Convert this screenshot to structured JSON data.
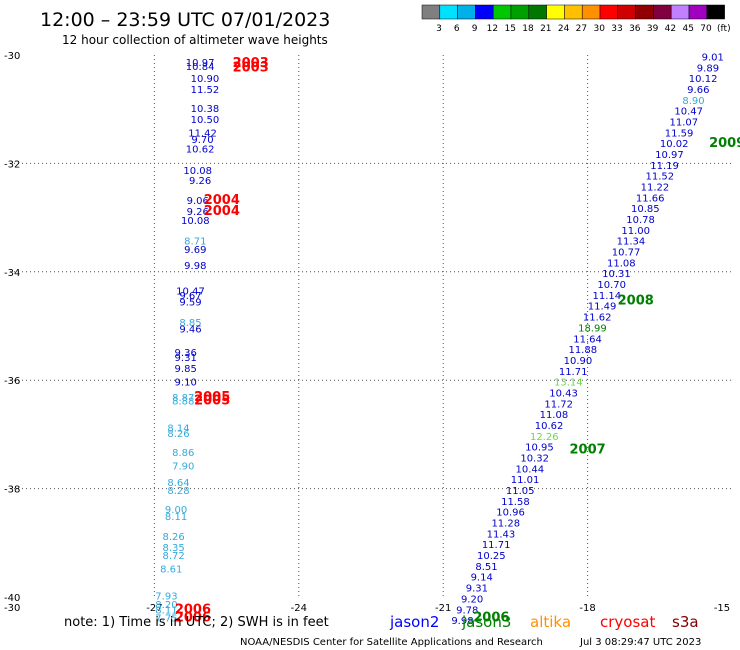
{
  "header": {
    "title": "12:00 – 23:59 UTC 07/01/2023",
    "subtitle": "12 hour collection of altimeter wave heights"
  },
  "colorbar": {
    "labels": [
      "3",
      "6",
      "9",
      "12",
      "15",
      "18",
      "21",
      "24",
      "27",
      "30",
      "33",
      "36",
      "39",
      "42",
      "45",
      "70",
      "(ft)"
    ],
    "colors": [
      "#7f7f7f",
      "#00e0ff",
      "#00b0e8",
      "#0000ff",
      "#00c800",
      "#00a000",
      "#007800",
      "#ffff00",
      "#ffc000",
      "#ff9000",
      "#ff0000",
      "#d00000",
      "#900000",
      "#800040",
      "#c080ff",
      "#a000c0",
      "#000000"
    ]
  },
  "footer": {
    "note": "note:  1) Time is in UTC;  2) SWH is in feet",
    "satellites": [
      {
        "name": "jason2",
        "color": "#0000ff"
      },
      {
        "name": "jason3",
        "color": "#008000"
      },
      {
        "name": "altika",
        "color": "#ff9000"
      },
      {
        "name": "cryosat",
        "color": "#ff0000"
      },
      {
        "name": "s3a",
        "color": "#800000"
      }
    ],
    "credit": "NOAA/NESDIS Center for Satellite Applications and Research",
    "timestamp": "Jul  3 08:29:47 UTC 2023"
  },
  "chart_data": {
    "type": "scatter",
    "x_ticks": [
      "-27",
      "-24",
      "-21",
      "-18",
      "-15"
    ],
    "y_ticks": [
      "-30",
      "-32",
      "-34",
      "-36",
      "-38",
      "-40"
    ],
    "xlim": [
      -30,
      -15
    ],
    "ylim": [
      -40,
      -30
    ],
    "grid": true,
    "points": [
      {
        "x": -26.05,
        "y": -30.2,
        "v": "10.97",
        "c": "#0000cc"
      },
      {
        "x": -26.05,
        "y": -30.28,
        "v": "10.84",
        "c": "#0000cc"
      },
      {
        "x": -25.95,
        "y": -30.5,
        "v": "10.90",
        "c": "#0000cc"
      },
      {
        "x": -25.95,
        "y": -30.7,
        "v": "11.52",
        "c": "#0000cc"
      },
      {
        "x": -25.95,
        "y": -31.05,
        "v": "10.38",
        "c": "#0000cc"
      },
      {
        "x": -25.95,
        "y": -31.25,
        "v": "10.50",
        "c": "#0000cc"
      },
      {
        "x": -26.0,
        "y": -31.5,
        "v": "11.42",
        "c": "#0000cc"
      },
      {
        "x": -26.0,
        "y": -31.62,
        "v": "9.70",
        "c": "#0000cc"
      },
      {
        "x": -26.05,
        "y": -31.8,
        "v": "10.62",
        "c": "#0000cc"
      },
      {
        "x": -26.1,
        "y": -32.2,
        "v": "10.08",
        "c": "#0000cc"
      },
      {
        "x": -26.05,
        "y": -32.38,
        "v": "9.26",
        "c": "#0000cc"
      },
      {
        "x": -26.1,
        "y": -32.75,
        "v": "9.06",
        "c": "#0000cc"
      },
      {
        "x": -26.1,
        "y": -32.95,
        "v": "9.26",
        "c": "#0000cc"
      },
      {
        "x": -26.15,
        "y": -33.12,
        "v": "10.08",
        "c": "#0000cc"
      },
      {
        "x": -26.15,
        "y": -33.5,
        "v": "8.71",
        "c": "#33aadd"
      },
      {
        "x": -26.15,
        "y": -33.65,
        "v": "9.69",
        "c": "#0000cc"
      },
      {
        "x": -26.15,
        "y": -33.95,
        "v": "9.98",
        "c": "#0000cc"
      },
      {
        "x": -26.25,
        "y": -34.42,
        "v": "10.47",
        "c": "#0000cc"
      },
      {
        "x": -26.25,
        "y": -34.5,
        "v": "9.67",
        "c": "#0000cc"
      },
      {
        "x": -26.25,
        "y": -34.62,
        "v": "9.59",
        "c": "#0000cc"
      },
      {
        "x": -26.25,
        "y": -35.0,
        "v": "8.85",
        "c": "#33aadd"
      },
      {
        "x": -26.25,
        "y": -35.12,
        "v": "9.46",
        "c": "#0000cc"
      },
      {
        "x": -26.35,
        "y": -35.55,
        "v": "9.36",
        "c": "#0000cc"
      },
      {
        "x": -26.35,
        "y": -35.65,
        "v": "9.31",
        "c": "#0000cc"
      },
      {
        "x": -26.35,
        "y": -35.85,
        "v": "9.85",
        "c": "#0000cc"
      },
      {
        "x": -26.35,
        "y": -36.1,
        "v": "9.10",
        "c": "#0000cc"
      },
      {
        "x": -26.4,
        "y": -36.38,
        "v": "8.87",
        "c": "#33aadd"
      },
      {
        "x": -26.4,
        "y": -36.45,
        "v": "8.88",
        "c": "#33aadd"
      },
      {
        "x": -26.5,
        "y": -36.95,
        "v": "8.14",
        "c": "#33aadd"
      },
      {
        "x": -26.5,
        "y": -37.05,
        "v": "8.26",
        "c": "#33aadd"
      },
      {
        "x": -26.4,
        "y": -37.4,
        "v": "8.86",
        "c": "#33aadd"
      },
      {
        "x": -26.4,
        "y": -37.65,
        "v": "7.90",
        "c": "#33aadd"
      },
      {
        "x": -26.5,
        "y": -37.95,
        "v": "8.64",
        "c": "#33aadd"
      },
      {
        "x": -26.5,
        "y": -38.1,
        "v": "8.28",
        "c": "#33aadd"
      },
      {
        "x": -26.55,
        "y": -38.45,
        "v": "9.00",
        "c": "#33aadd"
      },
      {
        "x": -26.55,
        "y": -38.58,
        "v": "8.11",
        "c": "#33aadd"
      },
      {
        "x": -26.6,
        "y": -38.95,
        "v": "8.26",
        "c": "#33aadd"
      },
      {
        "x": -26.6,
        "y": -39.15,
        "v": "8.35",
        "c": "#33aadd"
      },
      {
        "x": -26.6,
        "y": -39.3,
        "v": "8.72",
        "c": "#33aadd"
      },
      {
        "x": -26.65,
        "y": -39.55,
        "v": "8.61",
        "c": "#33aadd"
      },
      {
        "x": -26.75,
        "y": -40.05,
        "v": "7.93",
        "c": "#33aadd"
      },
      {
        "x": -26.75,
        "y": -40.2,
        "v": "8.20",
        "c": "#33aadd"
      },
      {
        "x": -26.75,
        "y": -40.3,
        "v": "8.11",
        "c": "#33aadd"
      },
      {
        "x": -26.75,
        "y": -40.45,
        "v": "7.75",
        "c": "#33aadd"
      },
      {
        "x": -15.4,
        "y": -30.1,
        "v": "9.01",
        "c": "#0000cc"
      },
      {
        "x": -15.5,
        "y": -30.3,
        "v": "9.89",
        "c": "#0000cc"
      },
      {
        "x": -15.6,
        "y": -30.5,
        "v": "10.12",
        "c": "#0000cc"
      },
      {
        "x": -15.7,
        "y": -30.7,
        "v": "9.66",
        "c": "#0000cc"
      },
      {
        "x": -15.8,
        "y": -30.9,
        "v": "8.90",
        "c": "#33aadd"
      },
      {
        "x": -15.9,
        "y": -31.1,
        "v": "10.47",
        "c": "#0000cc"
      },
      {
        "x": -16.0,
        "y": -31.3,
        "v": "11.07",
        "c": "#0000cc"
      },
      {
        "x": -16.1,
        "y": -31.5,
        "v": "11.59",
        "c": "#0000cc"
      },
      {
        "x": -16.2,
        "y": -31.7,
        "v": "10.02",
        "c": "#0000cc"
      },
      {
        "x": -16.3,
        "y": -31.9,
        "v": "10.97",
        "c": "#0000cc"
      },
      {
        "x": -16.4,
        "y": -32.1,
        "v": "11.19",
        "c": "#0000cc"
      },
      {
        "x": -16.5,
        "y": -32.3,
        "v": "11.52",
        "c": "#0000cc"
      },
      {
        "x": -16.6,
        "y": -32.5,
        "v": "11.22",
        "c": "#0000cc"
      },
      {
        "x": -16.7,
        "y": -32.7,
        "v": "11.66",
        "c": "#0000cc"
      },
      {
        "x": -16.8,
        "y": -32.9,
        "v": "10.85",
        "c": "#0000cc"
      },
      {
        "x": -16.9,
        "y": -33.1,
        "v": "10.78",
        "c": "#0000cc"
      },
      {
        "x": -17.0,
        "y": -33.3,
        "v": "11.00",
        "c": "#0000cc"
      },
      {
        "x": -17.1,
        "y": -33.5,
        "v": "11.34",
        "c": "#0000cc"
      },
      {
        "x": -17.2,
        "y": -33.7,
        "v": "10.77",
        "c": "#0000cc"
      },
      {
        "x": -17.3,
        "y": -33.9,
        "v": "11.08",
        "c": "#0000cc"
      },
      {
        "x": -17.4,
        "y": -34.1,
        "v": "10.31",
        "c": "#0000cc"
      },
      {
        "x": -17.5,
        "y": -34.3,
        "v": "10.70",
        "c": "#0000cc"
      },
      {
        "x": -17.6,
        "y": -34.5,
        "v": "11.14",
        "c": "#0000cc"
      },
      {
        "x": -17.7,
        "y": -34.7,
        "v": "11.49",
        "c": "#0000cc"
      },
      {
        "x": -17.8,
        "y": -34.9,
        "v": "11.62",
        "c": "#0000cc"
      },
      {
        "x": -17.9,
        "y": -35.1,
        "v": "18.99",
        "c": "#008000"
      },
      {
        "x": -18.0,
        "y": -35.3,
        "v": "11.64",
        "c": "#0000cc"
      },
      {
        "x": -18.1,
        "y": -35.5,
        "v": "11.88",
        "c": "#0000cc"
      },
      {
        "x": -18.2,
        "y": -35.7,
        "v": "10.90",
        "c": "#0000cc"
      },
      {
        "x": -18.3,
        "y": -35.9,
        "v": "11.71",
        "c": "#0000cc"
      },
      {
        "x": -18.4,
        "y": -36.1,
        "v": "13.14",
        "c": "#66dd44"
      },
      {
        "x": -18.5,
        "y": -36.3,
        "v": "10.43",
        "c": "#0000cc"
      },
      {
        "x": -18.6,
        "y": -36.5,
        "v": "11.72",
        "c": "#0000cc"
      },
      {
        "x": -18.7,
        "y": -36.7,
        "v": "11.08",
        "c": "#0000cc"
      },
      {
        "x": -18.8,
        "y": -36.9,
        "v": "10.62",
        "c": "#0000cc"
      },
      {
        "x": -18.9,
        "y": -37.1,
        "v": "12.26",
        "c": "#66dd44"
      },
      {
        "x": -19.0,
        "y": -37.3,
        "v": "10.95",
        "c": "#0000cc"
      },
      {
        "x": -19.1,
        "y": -37.5,
        "v": "10.32",
        "c": "#0000cc"
      },
      {
        "x": -19.2,
        "y": -37.7,
        "v": "10.44",
        "c": "#0000cc"
      },
      {
        "x": -19.3,
        "y": -37.9,
        "v": "11.01",
        "c": "#0000cc"
      },
      {
        "x": -19.4,
        "y": -38.1,
        "v": "11.05",
        "c": "#0000cc"
      },
      {
        "x": -19.5,
        "y": -38.3,
        "v": "11.58",
        "c": "#0000cc"
      },
      {
        "x": -19.6,
        "y": -38.5,
        "v": "10.96",
        "c": "#0000cc"
      },
      {
        "x": -19.7,
        "y": -38.7,
        "v": "11.28",
        "c": "#0000cc"
      },
      {
        "x": -19.8,
        "y": -38.9,
        "v": "11.43",
        "c": "#0000cc"
      },
      {
        "x": -19.9,
        "y": -39.1,
        "v": "11.71",
        "c": "#0000cc"
      },
      {
        "x": -20.0,
        "y": -39.3,
        "v": "10.25",
        "c": "#0000cc"
      },
      {
        "x": -20.1,
        "y": -39.5,
        "v": "8.51",
        "c": "#0000cc"
      },
      {
        "x": -20.2,
        "y": -39.7,
        "v": "9.14",
        "c": "#0000cc"
      },
      {
        "x": -20.3,
        "y": -39.9,
        "v": "9.31",
        "c": "#0000cc"
      },
      {
        "x": -20.4,
        "y": -40.1,
        "v": "9.20",
        "c": "#0000cc"
      },
      {
        "x": -20.5,
        "y": -40.3,
        "v": "9.78",
        "c": "#0000cc"
      },
      {
        "x": -20.6,
        "y": -40.5,
        "v": "9.98",
        "c": "#0000cc"
      }
    ],
    "time_labels": [
      {
        "x": -25.0,
        "y": -30.22,
        "t": "2003",
        "c": "#ff0000"
      },
      {
        "x": -25.0,
        "y": -30.3,
        "t": "2003",
        "c": "#ff0000"
      },
      {
        "x": -25.6,
        "y": -32.75,
        "t": "2004",
        "c": "#ff0000"
      },
      {
        "x": -25.6,
        "y": -32.95,
        "t": "2004",
        "c": "#ff0000"
      },
      {
        "x": -25.8,
        "y": -36.38,
        "t": "2005",
        "c": "#ff0000"
      },
      {
        "x": -25.8,
        "y": -36.45,
        "t": "2005",
        "c": "#ff0000"
      },
      {
        "x": -26.2,
        "y": -40.3,
        "t": "2006",
        "c": "#ff0000"
      },
      {
        "x": -26.2,
        "y": -40.45,
        "t": "2006",
        "c": "#ff0000"
      },
      {
        "x": -15.1,
        "y": -31.7,
        "t": "2009",
        "c": "#008000"
      },
      {
        "x": -17.0,
        "y": -34.6,
        "t": "2008",
        "c": "#008000"
      },
      {
        "x": -18.0,
        "y": -37.35,
        "t": "2007",
        "c": "#008000"
      },
      {
        "x": -20.0,
        "y": -40.45,
        "t": "2006",
        "c": "#008000"
      }
    ]
  }
}
